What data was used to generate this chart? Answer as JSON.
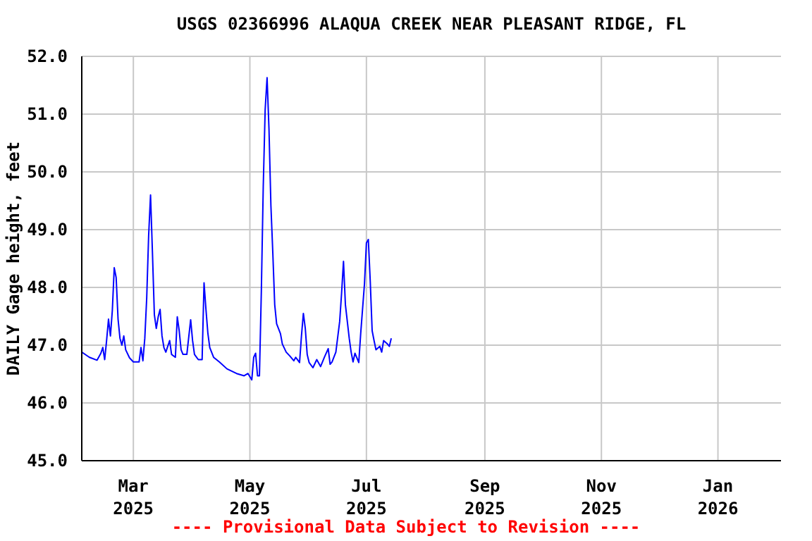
{
  "chart_data": {
    "type": "line",
    "title": "USGS 02366996 ALAQUA CREEK NEAR PLEASANT RIDGE, FL",
    "ylabel": "DAILY Gage height, feet",
    "annotations": [
      "---- Provisional Data Subject to Revision ----"
    ],
    "x": [
      "2025-02-02",
      "2025-02-06",
      "2025-02-10",
      "2025-02-12",
      "2025-02-13",
      "2025-02-14",
      "2025-02-15",
      "2025-02-16",
      "2025-02-17",
      "2025-02-18",
      "2025-02-19",
      "2025-02-20",
      "2025-02-21",
      "2025-02-22",
      "2025-02-23",
      "2025-02-24",
      "2025-02-25",
      "2025-02-27",
      "2025-03-01",
      "2025-03-04",
      "2025-03-05",
      "2025-03-06",
      "2025-03-07",
      "2025-03-08",
      "2025-03-09",
      "2025-03-10",
      "2025-03-11",
      "2025-03-12",
      "2025-03-13",
      "2025-03-14",
      "2025-03-15",
      "2025-03-16",
      "2025-03-17",
      "2025-03-18",
      "2025-03-20",
      "2025-03-21",
      "2025-03-23",
      "2025-03-24",
      "2025-03-25",
      "2025-03-26",
      "2025-03-27",
      "2025-03-29",
      "2025-03-31",
      "2025-04-01",
      "2025-04-02",
      "2025-04-04",
      "2025-04-06",
      "2025-04-07",
      "2025-04-08",
      "2025-04-09",
      "2025-04-10",
      "2025-04-12",
      "2025-04-15",
      "2025-04-19",
      "2025-04-24",
      "2025-04-28",
      "2025-04-30",
      "2025-05-02",
      "2025-05-03",
      "2025-05-04",
      "2025-05-05",
      "2025-05-06",
      "2025-05-07",
      "2025-05-08",
      "2025-05-09",
      "2025-05-10",
      "2025-05-11",
      "2025-05-12",
      "2025-05-13",
      "2025-05-14",
      "2025-05-15",
      "2025-05-17",
      "2025-05-18",
      "2025-05-20",
      "2025-05-22",
      "2025-05-24",
      "2025-05-25",
      "2025-05-27",
      "2025-05-28",
      "2025-05-29",
      "2025-05-30",
      "2025-05-31",
      "2025-06-01",
      "2025-06-03",
      "2025-06-05",
      "2025-06-07",
      "2025-06-09",
      "2025-06-11",
      "2025-06-12",
      "2025-06-13",
      "2025-06-15",
      "2025-06-17",
      "2025-06-18",
      "2025-06-19",
      "2025-06-20",
      "2025-06-22",
      "2025-06-23",
      "2025-06-24",
      "2025-06-25",
      "2025-06-27",
      "2025-06-28",
      "2025-06-30",
      "2025-07-01",
      "2025-07-02",
      "2025-07-03",
      "2025-07-04",
      "2025-07-05",
      "2025-07-06",
      "2025-07-08",
      "2025-07-09",
      "2025-07-10",
      "2025-07-12",
      "2025-07-13",
      "2025-07-14"
    ],
    "series": [
      {
        "color": "#0000ff",
        "values": [
          46.88,
          46.79,
          46.74,
          46.86,
          46.96,
          46.75,
          47.08,
          47.45,
          47.16,
          47.6,
          48.34,
          48.17,
          47.45,
          47.12,
          47.0,
          47.16,
          46.92,
          46.78,
          46.71,
          46.71,
          46.96,
          46.73,
          47.12,
          47.82,
          48.89,
          49.6,
          48.6,
          47.53,
          47.29,
          47.49,
          47.62,
          47.16,
          46.96,
          46.88,
          47.08,
          46.84,
          46.79,
          47.49,
          47.25,
          46.92,
          46.84,
          46.84,
          47.44,
          47.08,
          46.84,
          46.75,
          46.75,
          48.08,
          47.62,
          47.21,
          46.96,
          46.79,
          46.71,
          46.59,
          46.51,
          46.47,
          46.51,
          46.4,
          46.79,
          46.86,
          46.47,
          46.47,
          47.94,
          49.75,
          51.08,
          51.63,
          50.74,
          49.42,
          48.6,
          47.7,
          47.37,
          47.2,
          47.02,
          46.88,
          46.81,
          46.73,
          46.79,
          46.7,
          47.16,
          47.55,
          47.29,
          46.84,
          46.7,
          46.61,
          46.75,
          46.63,
          46.79,
          46.94,
          46.67,
          46.71,
          46.88,
          47.41,
          47.9,
          48.45,
          47.7,
          47.12,
          46.88,
          46.71,
          46.86,
          46.7,
          47.2,
          48.07,
          48.77,
          48.83,
          48.11,
          47.25,
          47.08,
          46.92,
          46.98,
          46.88,
          47.08,
          47.02,
          46.98,
          47.12
        ]
      }
    ],
    "xlim": [
      "2025-02-02",
      "2026-02-03"
    ],
    "xticks": [
      {
        "value": "2025-03-01",
        "label": "Mar 2025"
      },
      {
        "value": "2025-05-01",
        "label": "May 2025"
      },
      {
        "value": "2025-07-01",
        "label": "Jul 2025"
      },
      {
        "value": "2025-09-01",
        "label": "Sep 2025"
      },
      {
        "value": "2025-11-01",
        "label": "Nov 2025"
      },
      {
        "value": "2026-01-01",
        "label": "Jan 2026"
      }
    ],
    "ylim": [
      45,
      52
    ],
    "yticks": [
      {
        "value": 45,
        "label": "45.0"
      },
      {
        "value": 46,
        "label": "46.0"
      },
      {
        "value": 47,
        "label": "47.0"
      },
      {
        "value": 48,
        "label": "48.0"
      },
      {
        "value": 49,
        "label": "49.0"
      },
      {
        "value": 50,
        "label": "50.0"
      },
      {
        "value": 51,
        "label": "51.0"
      },
      {
        "value": 52,
        "label": "52.0"
      }
    ],
    "grid": true,
    "legend": false
  }
}
